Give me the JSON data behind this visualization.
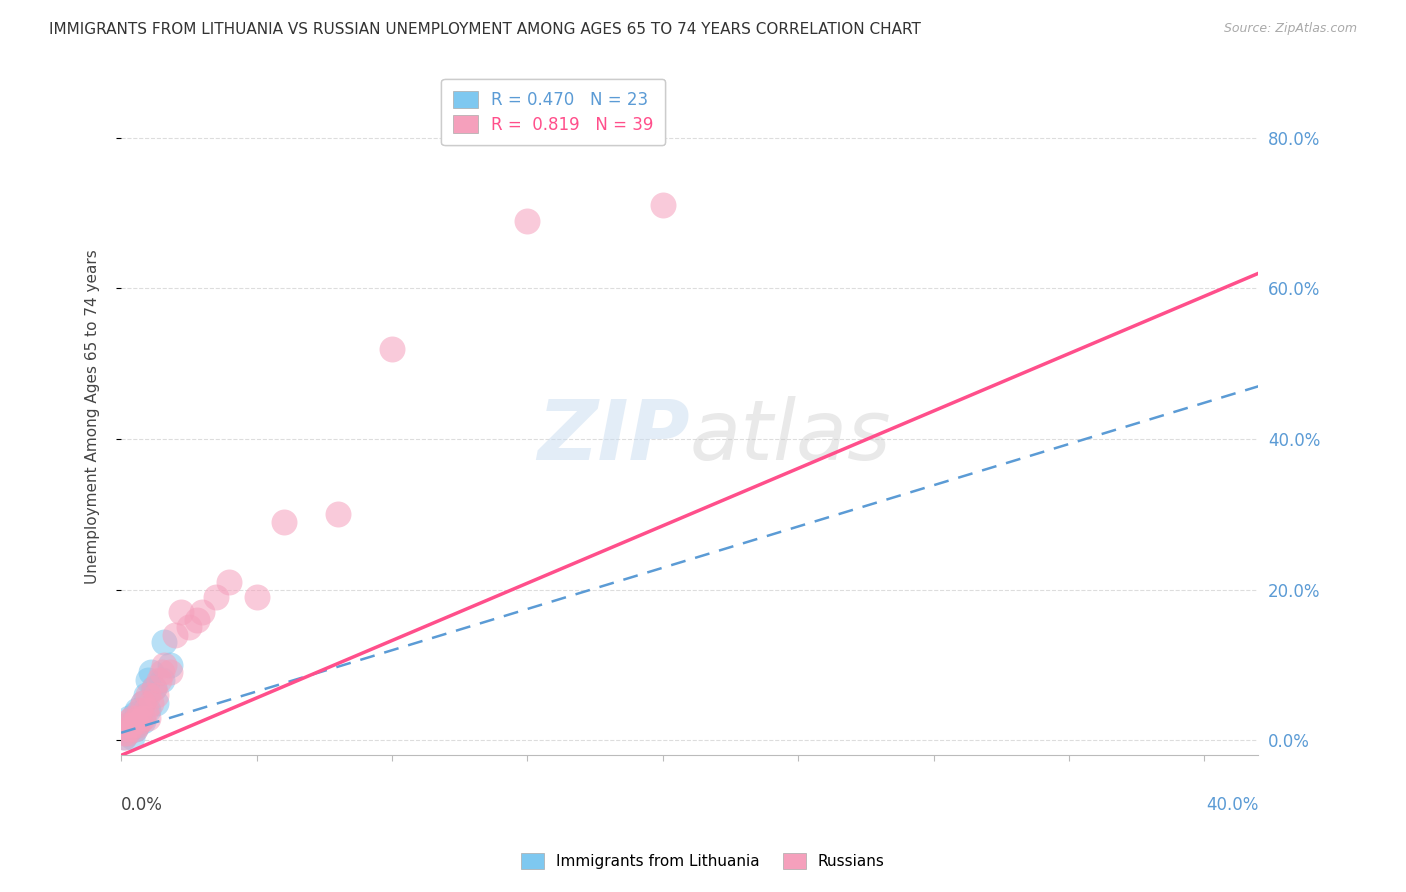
{
  "title": "IMMIGRANTS FROM LITHUANIA VS RUSSIAN UNEMPLOYMENT AMONG AGES 65 TO 74 YEARS CORRELATION CHART",
  "source": "Source: ZipAtlas.com",
  "ylabel": "Unemployment Among Ages 65 to 74 years",
  "series1_label": "Immigrants from Lithuania",
  "series2_label": "Russians",
  "series1_color": "#7EC8F0",
  "series2_color": "#F5A0BC",
  "series1_line_color": "#5B9BD5",
  "series2_line_color": "#FF4F8B",
  "series1_R": 0.47,
  "series1_N": 23,
  "series2_R": 0.819,
  "series2_N": 39,
  "watermark": "ZIPatlas",
  "background_color": "#FFFFFF",
  "grid_color": "#DDDDDD",
  "right_axis_color": "#5B9BD5",
  "title_fontsize": 11,
  "source_fontsize": 9,
  "xlim": [
    0.0,
    0.42
  ],
  "ylim": [
    -0.02,
    0.88
  ],
  "ytick_values": [
    0.0,
    0.2,
    0.4,
    0.6,
    0.8
  ],
  "series1_x": [
    0.001,
    0.002,
    0.002,
    0.003,
    0.003,
    0.004,
    0.004,
    0.005,
    0.005,
    0.006,
    0.006,
    0.007,
    0.008,
    0.008,
    0.009,
    0.01,
    0.01,
    0.011,
    0.012,
    0.013,
    0.015,
    0.016,
    0.018
  ],
  "series1_y": [
    0.005,
    0.01,
    0.02,
    0.015,
    0.03,
    0.005,
    0.02,
    0.015,
    0.035,
    0.02,
    0.04,
    0.03,
    0.025,
    0.05,
    0.06,
    0.04,
    0.08,
    0.09,
    0.07,
    0.05,
    0.08,
    0.13,
    0.1
  ],
  "series2_x": [
    0.001,
    0.001,
    0.002,
    0.002,
    0.003,
    0.003,
    0.004,
    0.004,
    0.005,
    0.005,
    0.006,
    0.006,
    0.007,
    0.007,
    0.008,
    0.008,
    0.009,
    0.01,
    0.01,
    0.011,
    0.012,
    0.013,
    0.014,
    0.015,
    0.016,
    0.018,
    0.02,
    0.022,
    0.025,
    0.028,
    0.03,
    0.035,
    0.04,
    0.05,
    0.06,
    0.08,
    0.1,
    0.15,
    0.2
  ],
  "series2_y": [
    0.005,
    0.01,
    0.01,
    0.02,
    0.015,
    0.025,
    0.02,
    0.03,
    0.015,
    0.025,
    0.02,
    0.03,
    0.025,
    0.04,
    0.03,
    0.05,
    0.04,
    0.03,
    0.06,
    0.05,
    0.07,
    0.06,
    0.08,
    0.09,
    0.1,
    0.09,
    0.14,
    0.17,
    0.15,
    0.16,
    0.17,
    0.19,
    0.21,
    0.19,
    0.29,
    0.3,
    0.52,
    0.69,
    0.71
  ],
  "s1_trend_x0": 0.0,
  "s1_trend_y0": 0.01,
  "s1_trend_x1": 0.4,
  "s1_trend_y1": 0.47,
  "s2_trend_x0": 0.0,
  "s2_trend_y0": -0.02,
  "s2_trend_x1": 0.4,
  "s2_trend_y1": 0.62
}
